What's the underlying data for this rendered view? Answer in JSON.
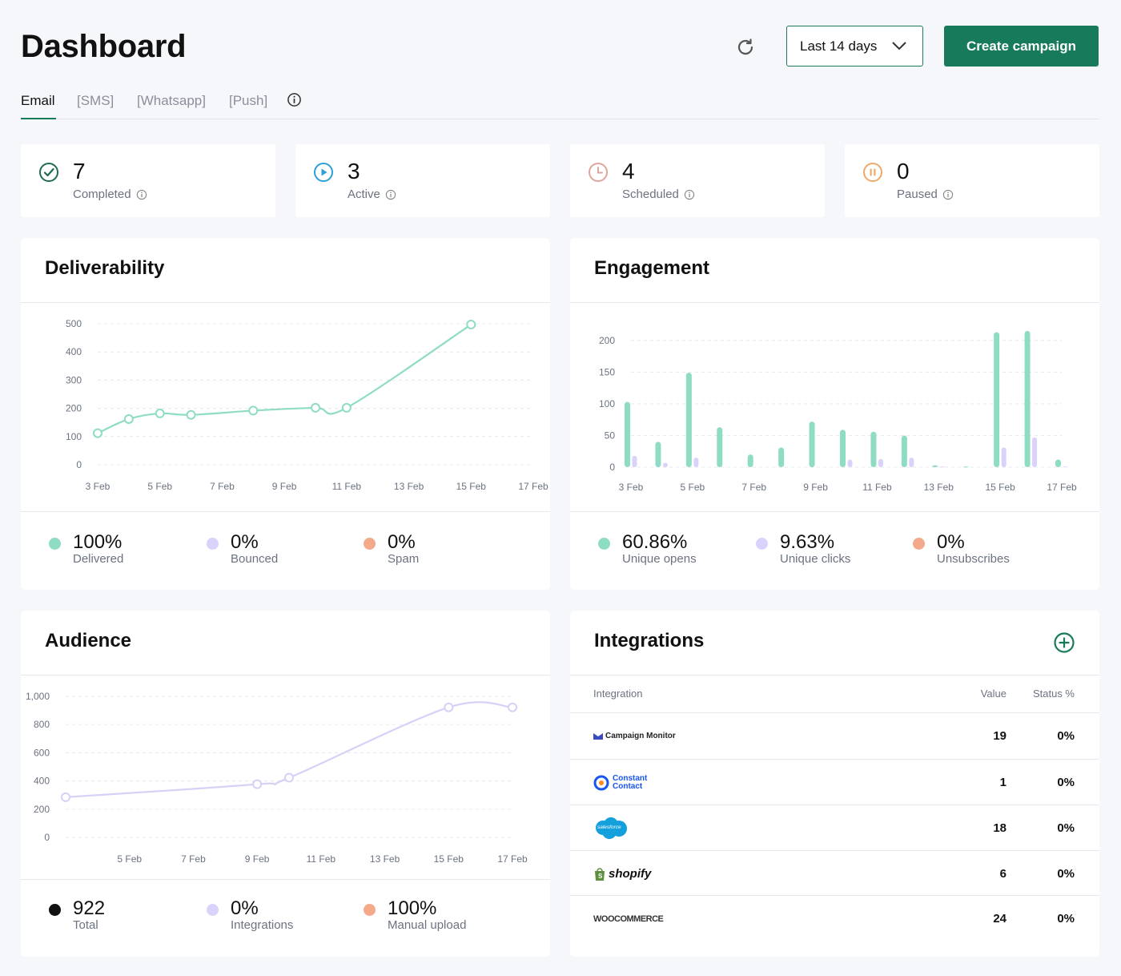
{
  "header": {
    "title": "Dashboard",
    "date_range": "Last 14 days",
    "create_label": "Create campaign"
  },
  "tabs": [
    {
      "label": "Email"
    },
    {
      "label": "[SMS]"
    },
    {
      "label": "[Whatsapp]"
    },
    {
      "label": "[Push]"
    }
  ],
  "stats": [
    {
      "value": "7",
      "label": "Completed",
      "color": "#1f6b52"
    },
    {
      "value": "3",
      "label": "Active",
      "color": "#2b9fd8"
    },
    {
      "value": "4",
      "label": "Scheduled",
      "color": "#e0a59a"
    },
    {
      "value": "0",
      "label": "Paused",
      "color": "#f0a868"
    }
  ],
  "deliverability": {
    "title": "Deliverability",
    "metrics": [
      {
        "value": "100%",
        "label": "Delivered",
        "color": "#8fdcc4"
      },
      {
        "value": "0%",
        "label": "Bounced",
        "color": "#d9d3fb"
      },
      {
        "value": "0%",
        "label": "Spam",
        "color": "#f4a98a"
      }
    ]
  },
  "engagement": {
    "title": "Engagement",
    "metrics": [
      {
        "value": "60.86%",
        "label": "Unique opens",
        "color": "#8fdcc4"
      },
      {
        "value": "9.63%",
        "label": "Unique clicks",
        "color": "#d9d3fb"
      },
      {
        "value": "0%",
        "label": "Unsubscribes",
        "color": "#f4a98a"
      }
    ]
  },
  "audience": {
    "title": "Audience",
    "metrics": [
      {
        "value": "922",
        "label": "Total",
        "color": "#111111"
      },
      {
        "value": "0%",
        "label": "Integrations",
        "color": "#d9d3fb"
      },
      {
        "value": "100%",
        "label": "Manual upload",
        "color": "#f4a98a"
      }
    ]
  },
  "integrations": {
    "title": "Integrations",
    "headers": {
      "integration": "Integration",
      "value": "Value",
      "status": "Status %"
    },
    "rows": [
      {
        "name": "Campaign Monitor",
        "value": "19",
        "status": "0%"
      },
      {
        "name": "Constant Contact",
        "value": "1",
        "status": "0%"
      },
      {
        "name": "salesforce",
        "value": "18",
        "status": "0%"
      },
      {
        "name": "shopify",
        "value": "6",
        "status": "0%"
      },
      {
        "name": "WooCommerce",
        "value": "24",
        "status": "0%"
      }
    ]
  },
  "chart_data": [
    {
      "id": "deliverability",
      "type": "line",
      "x_ticks": [
        "3 Feb",
        "5 Feb",
        "7 Feb",
        "9 Feb",
        "11 Feb",
        "13 Feb",
        "15 Feb",
        "17 Feb"
      ],
      "y_ticks": [
        "0",
        "100",
        "200",
        "300",
        "400",
        "500"
      ],
      "ylim": [
        0,
        500
      ],
      "xlim": [
        3,
        17
      ],
      "series": [
        {
          "name": "Delivered",
          "color": "#8fdcc4",
          "points": [
            [
              3,
              112
            ],
            [
              4,
              162
            ],
            [
              5,
              182
            ],
            [
              6,
              177
            ],
            [
              8,
              192
            ],
            [
              10,
              202
            ],
            [
              11,
              202
            ],
            [
              15,
              497
            ]
          ]
        }
      ]
    },
    {
      "id": "engagement",
      "type": "bar",
      "x_ticks": [
        "3 Feb",
        "5 Feb",
        "7 Feb",
        "9 Feb",
        "11 Feb",
        "13 Feb",
        "15 Feb",
        "17 Feb"
      ],
      "y_ticks": [
        "0",
        "50",
        "100",
        "150",
        "200"
      ],
      "ylim": [
        0,
        215
      ],
      "xlim": [
        3,
        17
      ],
      "categories": [
        "3 Feb",
        "4 Feb",
        "5 Feb",
        "6 Feb",
        "7 Feb",
        "8 Feb",
        "9 Feb",
        "10 Feb",
        "11 Feb",
        "12 Feb",
        "13 Feb",
        "14 Feb",
        "15 Feb",
        "16 Feb",
        "17 Feb"
      ],
      "series": [
        {
          "name": "Unique opens",
          "color": "#8fdcc4",
          "values": [
            103,
            40,
            149,
            63,
            20,
            31,
            72,
            59,
            56,
            50,
            3,
            1,
            213,
            215,
            12
          ]
        },
        {
          "name": "Unique clicks",
          "color": "#d9d3fb",
          "values": [
            18,
            7,
            15,
            0,
            0,
            0,
            0,
            12,
            13,
            15,
            1,
            0,
            31,
            47,
            1
          ]
        }
      ]
    },
    {
      "id": "audience",
      "type": "line",
      "x_ticks": [
        "5 Feb",
        "7 Feb",
        "9 Feb",
        "11 Feb",
        "13 Feb",
        "15 Feb",
        "17 Feb"
      ],
      "y_ticks": [
        "0",
        "200",
        "400",
        "600",
        "800",
        "1,000"
      ],
      "ylim": [
        0,
        1000
      ],
      "xlim": [
        3,
        17
      ],
      "series": [
        {
          "name": "Total",
          "color": "#d7d0f7",
          "points": [
            [
              3,
              285
            ],
            [
              9,
              377
            ],
            [
              10,
              423
            ],
            [
              15,
              922
            ],
            [
              17,
              922
            ]
          ]
        }
      ]
    }
  ]
}
